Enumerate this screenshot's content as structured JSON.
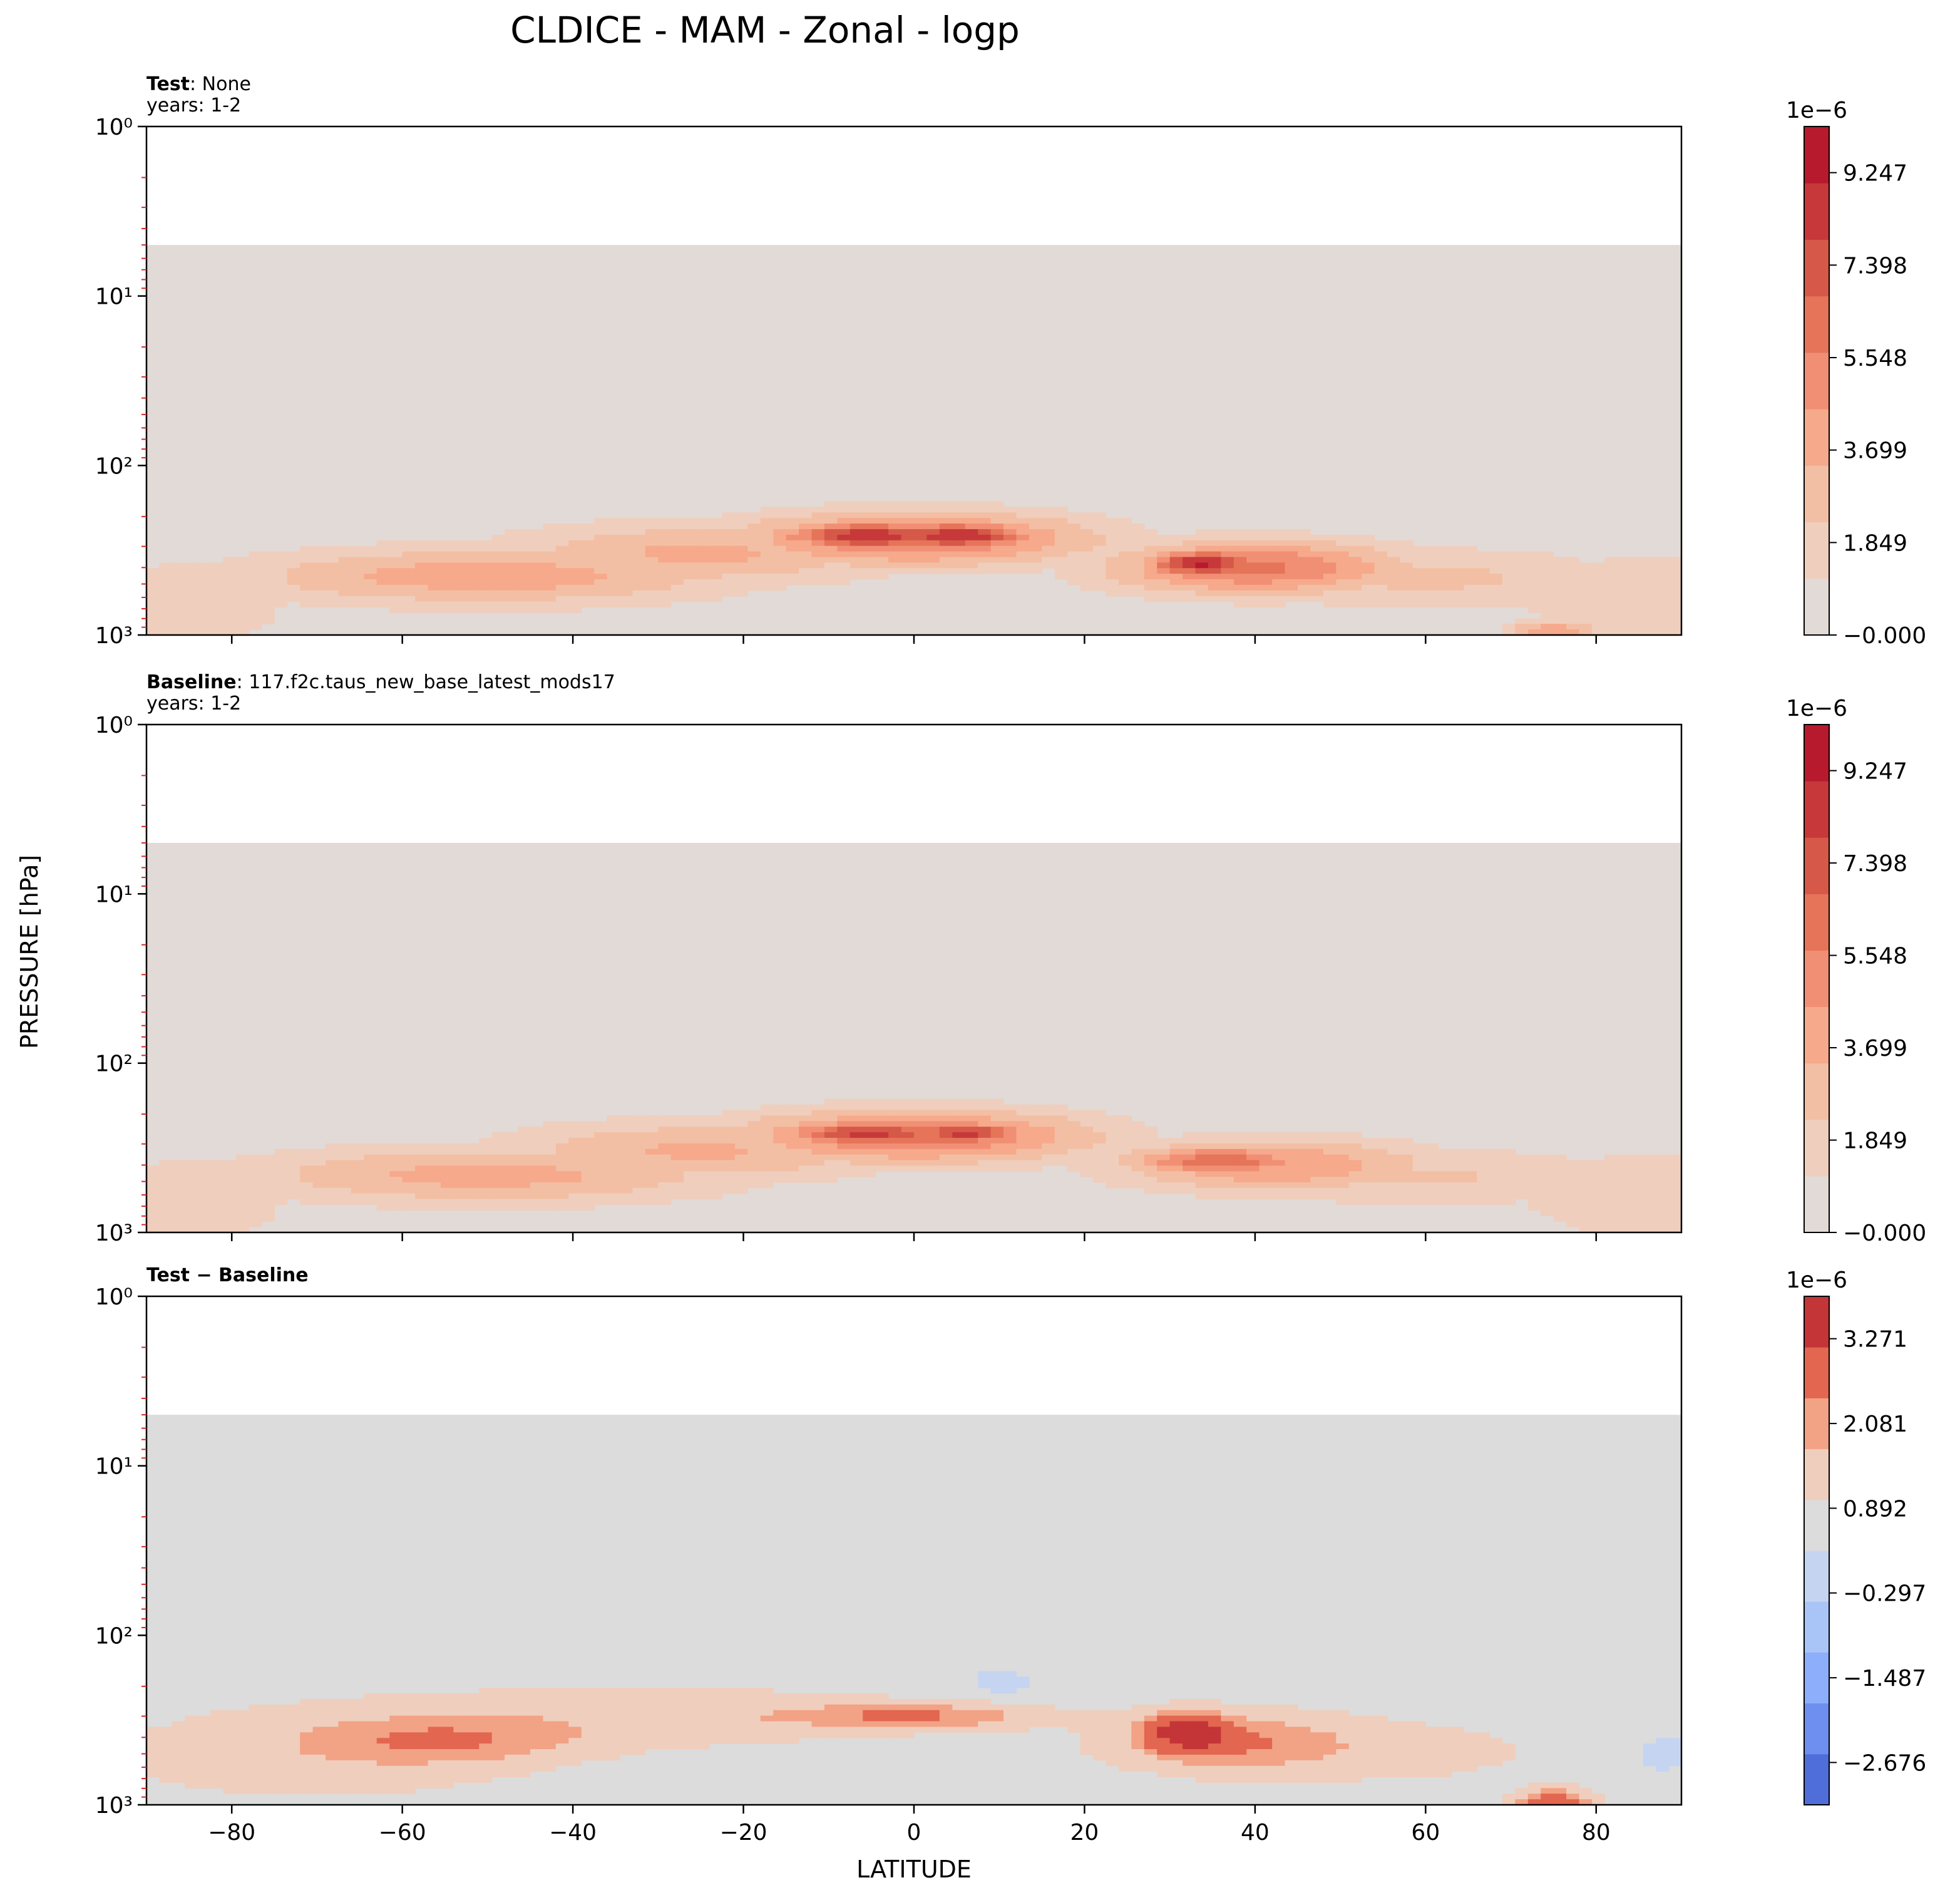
{
  "figure": {
    "title": "CLDICE - MAM - Zonal - logp",
    "xlabel": "LATITUDE",
    "ylabel": "PRESSURE [hPa]"
  },
  "colors": {
    "shaded_bg_main": "#e1dad6",
    "shaded_bg_diff": "#dcdcdc",
    "positive_levels": [
      "#efcebd",
      "#f3bfa4",
      "#f6a98b",
      "#f18f75",
      "#e57459",
      "#d65848",
      "#c6383a",
      "#b61a2c"
    ],
    "diff_pos_levels": [
      "#efcebd",
      "#f2a285",
      "#e26650",
      "#c43537"
    ],
    "diff_neg_levels": [
      "#c5d5f1",
      "#a9c5f8",
      "#8daefb",
      "#6f8ff0",
      "#4f6ed9"
    ]
  },
  "chart_data": [
    {
      "type": "contourf",
      "panel": "test",
      "label_bold": "Test",
      "label_rest": ": None",
      "years": "years: 1-2",
      "x": {
        "range": [
          -90,
          90
        ],
        "ticks": [
          "−80",
          "−60",
          "−40",
          "−20",
          "0",
          "20",
          "40",
          "60",
          "80"
        ],
        "tick_values": [
          -80,
          -60,
          -40,
          -20,
          0,
          20,
          40,
          60,
          80
        ],
        "show_labels": false
      },
      "y": {
        "scale": "log",
        "range": [
          1000,
          1
        ],
        "data_top_hPa": 5,
        "ticks": [
          "10⁰",
          "10¹",
          "10²",
          "10³"
        ]
      },
      "colorbar": {
        "offset": "1e−6",
        "ticks": [
          "9.247",
          "7.398",
          "5.548",
          "3.699",
          "1.849",
          "−0.000"
        ],
        "tick_values": [
          9.247,
          7.398,
          5.548,
          3.699,
          1.849,
          0.0
        ],
        "vmin": 0,
        "vmax": 10.17
      },
      "features": [
        {
          "lat": -5,
          "p": 260,
          "value": 9.8,
          "wlat": 8,
          "wlp": 0.06
        },
        {
          "lat": 5,
          "p": 260,
          "value": 9.8,
          "wlat": 7,
          "wlp": 0.06
        },
        {
          "lat": 0,
          "p": 270,
          "value": 6.5,
          "wlat": 16,
          "wlp": 0.12
        },
        {
          "lat": 34,
          "p": 380,
          "value": 10.0,
          "wlat": 5,
          "wlp": 0.06
        },
        {
          "lat": 40,
          "p": 400,
          "value": 6.5,
          "wlat": 13,
          "wlp": 0.12
        },
        {
          "lat": -50,
          "p": 450,
          "value": 4.5,
          "wlat": 22,
          "wlp": 0.13
        },
        {
          "lat": -25,
          "p": 330,
          "value": 4.0,
          "wlat": 18,
          "wlp": 0.14
        },
        {
          "lat": 60,
          "p": 460,
          "value": 2.8,
          "wlat": 18,
          "wlp": 0.14
        },
        {
          "lat": 85,
          "p": 600,
          "value": 2.2,
          "wlat": 12,
          "wlp": 0.22
        },
        {
          "lat": -85,
          "p": 650,
          "value": 2.2,
          "wlat": 10,
          "wlp": 0.22
        },
        {
          "lat": 75,
          "p": 950,
          "value": 4.5,
          "wlat": 4,
          "wlp": 0.05
        }
      ]
    },
    {
      "type": "contourf",
      "panel": "baseline",
      "label_bold": "Baseline",
      "label_rest": ": 117.f2c.taus_new_base_latest_mods17",
      "years": "years: 1-2",
      "x": {
        "range": [
          -90,
          90
        ],
        "ticks": [
          "−80",
          "−60",
          "−40",
          "−20",
          "0",
          "20",
          "40",
          "60",
          "80"
        ],
        "tick_values": [
          -80,
          -60,
          -40,
          -20,
          0,
          20,
          40,
          60,
          80
        ],
        "show_labels": false
      },
      "y": {
        "scale": "log",
        "range": [
          1000,
          1
        ],
        "data_top_hPa": 5,
        "ticks": [
          "10⁰",
          "10¹",
          "10²",
          "10³"
        ]
      },
      "colorbar": {
        "offset": "1e−6",
        "ticks": [
          "9.247",
          "7.398",
          "5.548",
          "3.699",
          "1.849",
          "−0.000"
        ],
        "tick_values": [
          9.247,
          7.398,
          5.548,
          3.699,
          1.849,
          0.0
        ],
        "vmin": 0,
        "vmax": 10.17
      },
      "features": [
        {
          "lat": -5,
          "p": 260,
          "value": 9.0,
          "wlat": 8,
          "wlp": 0.06
        },
        {
          "lat": 6,
          "p": 260,
          "value": 9.6,
          "wlat": 5,
          "wlp": 0.05
        },
        {
          "lat": 0,
          "p": 270,
          "value": 6.5,
          "wlat": 16,
          "wlp": 0.12
        },
        {
          "lat": 36,
          "p": 380,
          "value": 7.2,
          "wlat": 8,
          "wlp": 0.07
        },
        {
          "lat": 42,
          "p": 400,
          "value": 5.0,
          "wlat": 14,
          "wlp": 0.12
        },
        {
          "lat": -50,
          "p": 460,
          "value": 4.2,
          "wlat": 22,
          "wlp": 0.13
        },
        {
          "lat": -25,
          "p": 330,
          "value": 3.9,
          "wlat": 18,
          "wlp": 0.14
        },
        {
          "lat": 60,
          "p": 470,
          "value": 2.6,
          "wlat": 18,
          "wlp": 0.14
        },
        {
          "lat": 85,
          "p": 600,
          "value": 2.2,
          "wlat": 12,
          "wlp": 0.22
        },
        {
          "lat": -85,
          "p": 650,
          "value": 2.2,
          "wlat": 10,
          "wlp": 0.22
        }
      ]
    },
    {
      "type": "contourf",
      "panel": "difference",
      "label_bold": "Test − Baseline",
      "label_rest": "",
      "years": "",
      "x": {
        "range": [
          -90,
          90
        ],
        "ticks": [
          "−80",
          "−60",
          "−40",
          "−20",
          "0",
          "20",
          "40",
          "60",
          "80"
        ],
        "tick_values": [
          -80,
          -60,
          -40,
          -20,
          0,
          20,
          40,
          60,
          80
        ],
        "show_labels": true
      },
      "y": {
        "scale": "log",
        "range": [
          1000,
          1
        ],
        "data_top_hPa": 5,
        "ticks": [
          "10⁰",
          "10¹",
          "10²",
          "10³"
        ]
      },
      "colorbar": {
        "offset": "1e−6",
        "ticks": [
          "3.271",
          "2.081",
          "0.892",
          "−0.297",
          "−1.487",
          "−2.676"
        ],
        "tick_values": [
          3.271,
          2.081,
          0.892,
          -0.297,
          -1.487,
          -2.676
        ],
        "vmin": -3.27,
        "vmax": 3.866
      },
      "features": [
        {
          "lat": 32,
          "p": 370,
          "value": 3.1,
          "wlat": 3,
          "wlp": 0.07
        },
        {
          "lat": 36,
          "p": 420,
          "value": 1.4,
          "wlat": 9,
          "wlp": 0.12
        },
        {
          "lat": 0,
          "p": 300,
          "value": 1.4,
          "wlat": 10,
          "wlp": 0.05
        },
        {
          "lat": -55,
          "p": 420,
          "value": 1.1,
          "wlat": 10,
          "wlp": 0.09
        },
        {
          "lat": -30,
          "p": 300,
          "value": 0.7,
          "wlat": 22,
          "wlp": 0.13
        },
        {
          "lat": -70,
          "p": 500,
          "value": 0.65,
          "wlat": 18,
          "wlp": 0.2
        },
        {
          "lat": 55,
          "p": 480,
          "value": 0.55,
          "wlat": 14,
          "wlp": 0.14
        },
        {
          "lat": 10,
          "p": 190,
          "value": -0.65,
          "wlat": 3,
          "wlp": 0.05
        },
        {
          "lat": 88,
          "p": 500,
          "value": -0.6,
          "wlat": 3,
          "wlp": 0.08
        },
        {
          "lat": 75,
          "p": 950,
          "value": 2.0,
          "wlat": 3,
          "wlp": 0.05
        }
      ]
    }
  ]
}
